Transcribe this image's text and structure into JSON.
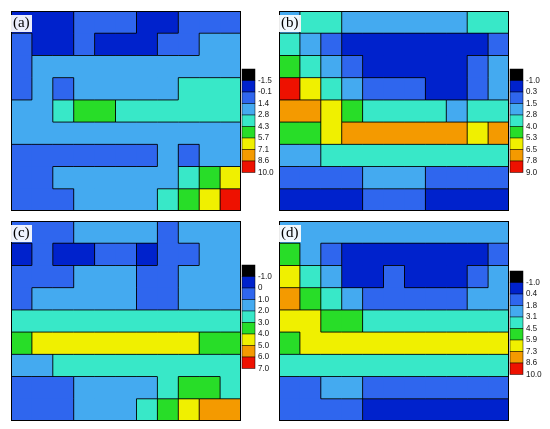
{
  "chart_data": [
    {
      "type": "heatmap",
      "panel_label": "(a)",
      "legend_ticks": [
        "-1.5",
        "-0.1",
        "1.4",
        "2.8",
        "4.3",
        "5.7",
        "7.1",
        "8.6",
        "10.0"
      ],
      "colors": [
        "#000000",
        "#0022cc",
        "#2f66ee",
        "#44aaf0",
        "#38e8c8",
        "#28dd28",
        "#f0f000",
        "#f49a00",
        "#ee1100"
      ],
      "grid": [
        [
          1,
          1,
          1,
          2,
          2,
          2,
          1,
          1,
          2,
          2,
          2
        ],
        [
          2,
          1,
          1,
          2,
          1,
          1,
          1,
          2,
          2,
          3,
          3
        ],
        [
          2,
          3,
          3,
          3,
          3,
          3,
          3,
          3,
          3,
          3,
          3
        ],
        [
          2,
          3,
          2,
          3,
          3,
          3,
          3,
          3,
          4,
          4,
          4
        ],
        [
          3,
          3,
          4,
          5,
          5,
          4,
          4,
          4,
          4,
          4,
          4
        ],
        [
          3,
          3,
          3,
          3,
          3,
          3,
          3,
          3,
          3,
          3,
          3
        ],
        [
          2,
          2,
          2,
          2,
          2,
          2,
          2,
          3,
          2,
          3,
          3
        ],
        [
          2,
          2,
          3,
          3,
          3,
          3,
          3,
          3,
          4,
          5,
          6
        ],
        [
          2,
          2,
          2,
          3,
          3,
          3,
          3,
          4,
          5,
          6,
          8
        ]
      ]
    },
    {
      "type": "heatmap",
      "panel_label": "(b)",
      "legend_ticks": [
        "-1.0",
        "0.3",
        "1.5",
        "2.8",
        "4.0",
        "5.3",
        "6.5",
        "7.8",
        "9.0"
      ],
      "colors": [
        "#000000",
        "#0022cc",
        "#2f66ee",
        "#44aaf0",
        "#38e8c8",
        "#28dd28",
        "#f0f000",
        "#f49a00",
        "#ee1100"
      ],
      "grid": [
        [
          3,
          4,
          4,
          3,
          3,
          3,
          3,
          3,
          3,
          4,
          4
        ],
        [
          4,
          3,
          2,
          1,
          1,
          1,
          1,
          1,
          1,
          1,
          2
        ],
        [
          5,
          4,
          3,
          2,
          1,
          1,
          1,
          1,
          1,
          2,
          3
        ],
        [
          8,
          6,
          4,
          3,
          2,
          2,
          2,
          1,
          1,
          2,
          3
        ],
        [
          7,
          7,
          6,
          5,
          4,
          4,
          4,
          4,
          3,
          4,
          4
        ],
        [
          5,
          5,
          6,
          7,
          7,
          7,
          7,
          7,
          7,
          6,
          7
        ],
        [
          3,
          3,
          4,
          4,
          4,
          4,
          4,
          4,
          4,
          4,
          4
        ],
        [
          2,
          2,
          2,
          2,
          3,
          3,
          3,
          2,
          2,
          2,
          2
        ],
        [
          1,
          1,
          1,
          1,
          2,
          2,
          2,
          1,
          1,
          1,
          1
        ]
      ]
    },
    {
      "type": "heatmap",
      "panel_label": "(c)",
      "legend_ticks": [
        "-1.0",
        "0",
        "1.0",
        "2.0",
        "3.0",
        "4.0",
        "5.0",
        "6.0",
        "7.0"
      ],
      "colors": [
        "#000000",
        "#0022cc",
        "#2f66ee",
        "#44aaf0",
        "#38e8c8",
        "#28dd28",
        "#f0f000",
        "#f49a00",
        "#ee1100"
      ],
      "grid": [
        [
          2,
          2,
          2,
          3,
          3,
          3,
          3,
          2,
          3,
          3,
          3
        ],
        [
          1,
          2,
          1,
          1,
          2,
          2,
          1,
          2,
          2,
          3,
          3
        ],
        [
          2,
          2,
          2,
          3,
          3,
          3,
          2,
          2,
          3,
          3,
          3
        ],
        [
          2,
          3,
          3,
          3,
          3,
          3,
          2,
          2,
          3,
          3,
          3
        ],
        [
          4,
          4,
          4,
          4,
          4,
          4,
          4,
          4,
          4,
          4,
          4
        ],
        [
          5,
          6,
          6,
          6,
          6,
          6,
          6,
          6,
          6,
          5,
          5
        ],
        [
          3,
          3,
          4,
          4,
          4,
          4,
          4,
          4,
          4,
          4,
          4
        ],
        [
          2,
          2,
          2,
          3,
          3,
          3,
          3,
          4,
          5,
          5,
          4
        ],
        [
          2,
          2,
          2,
          3,
          3,
          3,
          4,
          5,
          6,
          7,
          7
        ]
      ]
    },
    {
      "type": "heatmap",
      "panel_label": "(d)",
      "legend_ticks": [
        "-1.0",
        "0.4",
        "1.8",
        "3.1",
        "4.5",
        "5.9",
        "7.3",
        "8.6",
        "10.0"
      ],
      "colors": [
        "#000000",
        "#0022cc",
        "#2f66ee",
        "#44aaf0",
        "#38e8c8",
        "#28dd28",
        "#f0f000",
        "#f49a00",
        "#ee1100"
      ],
      "grid": [
        [
          3,
          3,
          3,
          3,
          3,
          3,
          3,
          3,
          3,
          3,
          3
        ],
        [
          5,
          3,
          2,
          1,
          1,
          1,
          1,
          1,
          1,
          1,
          2
        ],
        [
          6,
          4,
          3,
          1,
          1,
          2,
          1,
          1,
          1,
          2,
          3
        ],
        [
          7,
          5,
          4,
          3,
          2,
          2,
          2,
          2,
          2,
          3,
          3
        ],
        [
          6,
          6,
          5,
          5,
          4,
          4,
          4,
          4,
          4,
          4,
          4
        ],
        [
          5,
          6,
          6,
          6,
          6,
          6,
          6,
          6,
          6,
          6,
          6
        ],
        [
          4,
          4,
          4,
          4,
          4,
          4,
          4,
          4,
          4,
          4,
          4
        ],
        [
          2,
          2,
          3,
          3,
          2,
          2,
          2,
          2,
          2,
          2,
          2
        ],
        [
          2,
          2,
          2,
          2,
          1,
          1,
          1,
          1,
          1,
          1,
          1
        ]
      ]
    }
  ]
}
